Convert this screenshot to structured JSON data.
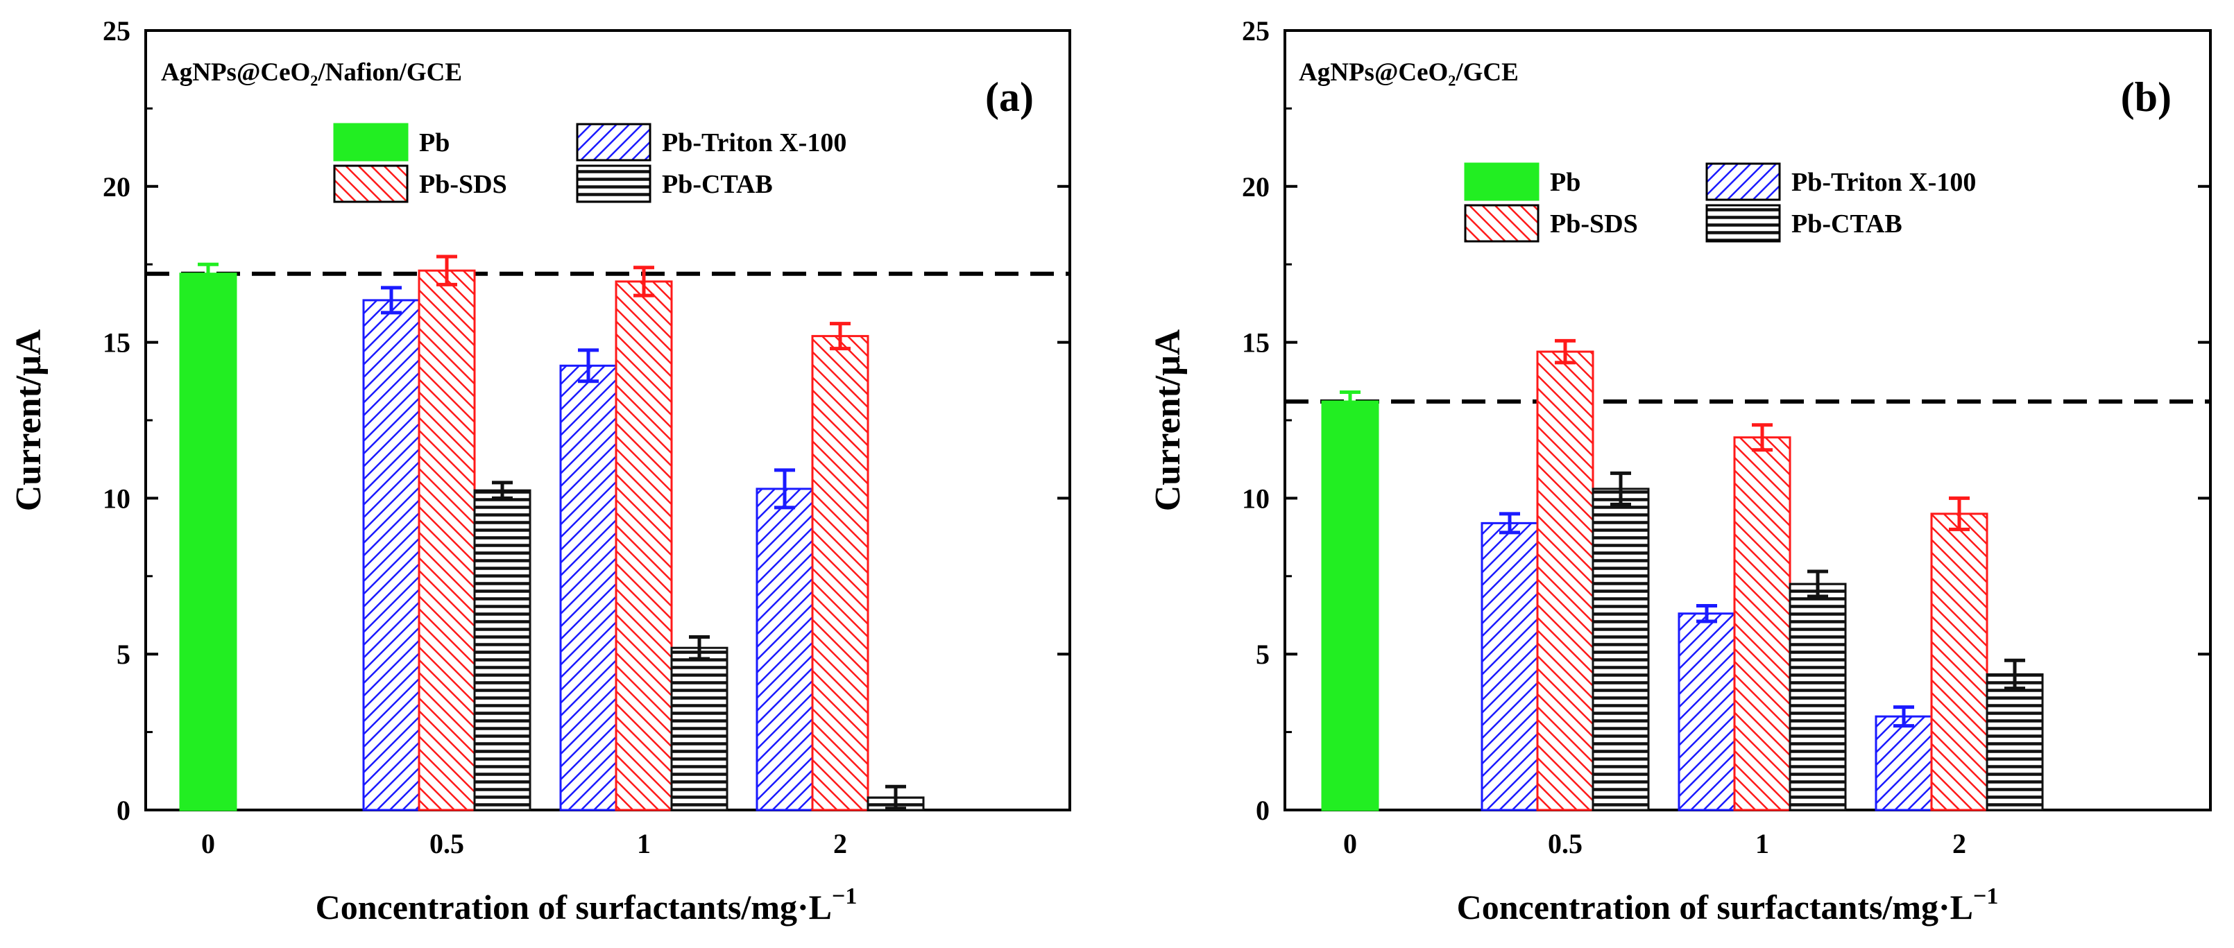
{
  "chart_data": [
    {
      "type": "bar",
      "panel_label": "(a)",
      "annotation": "AgNPs@CeO₂/Nafion/GCE",
      "xlabel": "Concentration of surfactants/mg·L",
      "xlabel_sup": "−1",
      "ylabel": "Current/μA",
      "ylim": [
        0,
        25
      ],
      "yticks": [
        "0",
        "5",
        "10",
        "15",
        "20",
        "25"
      ],
      "categories": [
        "0",
        "0.5",
        "1",
        "2"
      ],
      "reference_line": 17.2,
      "series": [
        {
          "name": "Pb",
          "color": "#22ee22",
          "pattern": "solid",
          "values": [
            17.2,
            null,
            null,
            null
          ],
          "errors": [
            0.3,
            null,
            null,
            null
          ]
        },
        {
          "name": "Pb-Triton X-100",
          "color": "#1a1aff",
          "pattern": "diag-right",
          "values": [
            null,
            16.35,
            14.25,
            10.3
          ],
          "errors": [
            null,
            0.4,
            0.5,
            0.6
          ]
        },
        {
          "name": "Pb-SDS",
          "color": "#ff1a1a",
          "pattern": "diag-left",
          "values": [
            null,
            17.3,
            16.95,
            15.2
          ],
          "errors": [
            null,
            0.45,
            0.45,
            0.4
          ]
        },
        {
          "name": "Pb-CTAB",
          "color": "#111111",
          "pattern": "horizontal",
          "values": [
            null,
            10.25,
            5.2,
            0.4
          ],
          "errors": [
            null,
            0.25,
            0.35,
            0.35
          ]
        }
      ],
      "legend": "top-center"
    },
    {
      "type": "bar",
      "panel_label": "(b)",
      "annotation": "AgNPs@CeO₂/GCE",
      "xlabel": "Concentration of surfactants/mg·L",
      "xlabel_sup": "−1",
      "ylabel": "Current/μA",
      "ylim": [
        0,
        25
      ],
      "yticks": [
        "0",
        "5",
        "10",
        "15",
        "20",
        "25"
      ],
      "categories": [
        "0",
        "0.5",
        "1",
        "2"
      ],
      "reference_line": 13.1,
      "series": [
        {
          "name": "Pb",
          "color": "#22ee22",
          "pattern": "solid",
          "values": [
            13.1,
            null,
            null,
            null
          ],
          "errors": [
            0.3,
            null,
            null,
            null
          ]
        },
        {
          "name": "Pb-Triton X-100",
          "color": "#1a1aff",
          "pattern": "diag-right",
          "values": [
            null,
            9.2,
            6.3,
            3.0
          ],
          "errors": [
            null,
            0.3,
            0.25,
            0.3
          ]
        },
        {
          "name": "Pb-SDS",
          "color": "#ff1a1a",
          "pattern": "diag-left",
          "values": [
            null,
            14.7,
            11.95,
            9.5
          ],
          "errors": [
            null,
            0.35,
            0.4,
            0.5
          ]
        },
        {
          "name": "Pb-CTAB",
          "color": "#111111",
          "pattern": "horizontal",
          "values": [
            null,
            10.3,
            7.25,
            4.35
          ],
          "errors": [
            null,
            0.5,
            0.4,
            0.45
          ]
        }
      ],
      "legend": "top-center"
    }
  ]
}
